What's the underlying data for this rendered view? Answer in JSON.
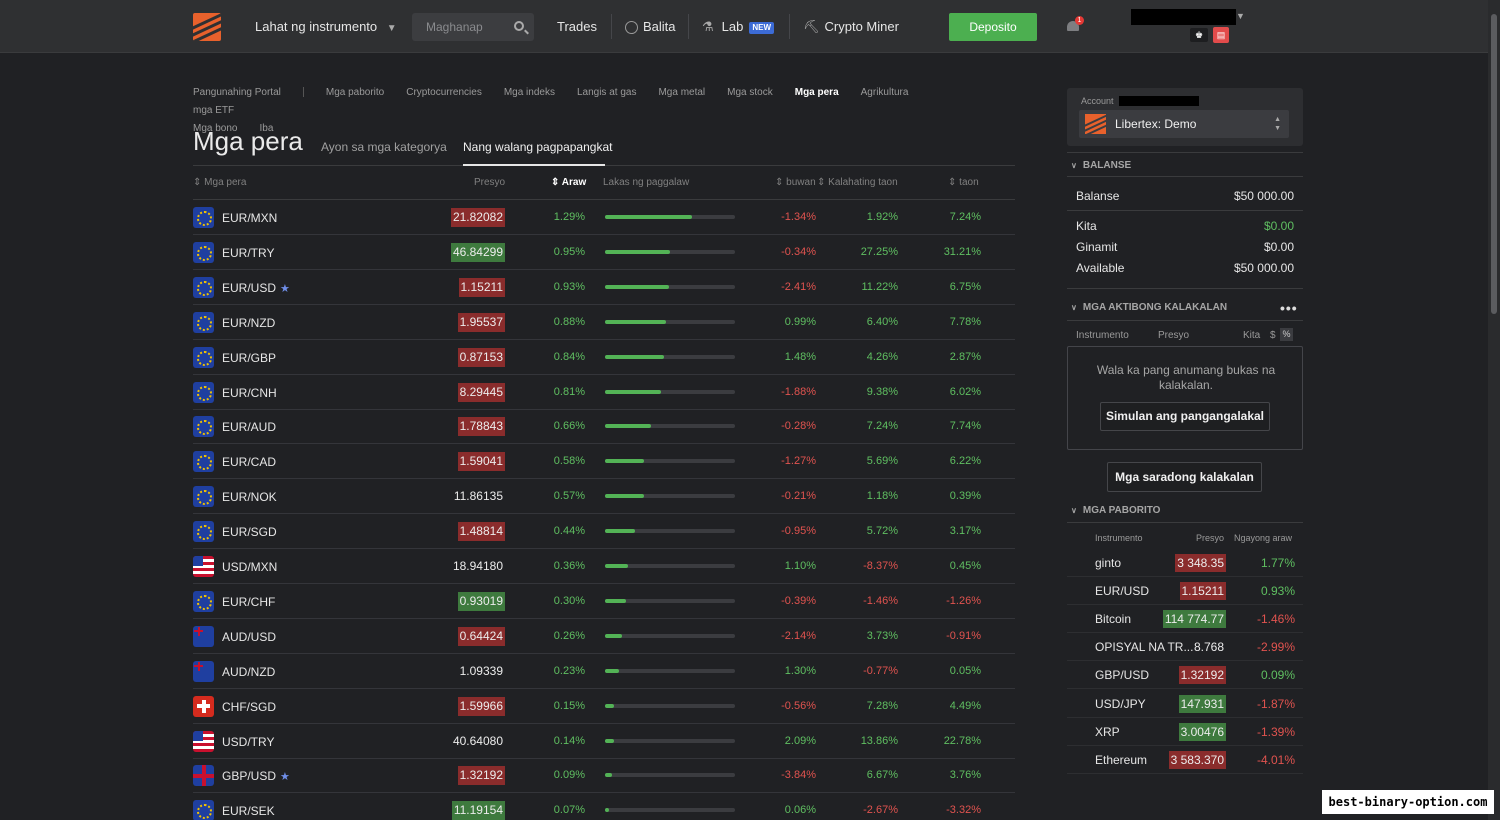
{
  "header": {
    "instruments_menu": "Lahat ng instrumento",
    "search_placeholder": "Maghanap",
    "trades": "Trades",
    "news": "Balita",
    "lab": "Lab",
    "lab_badge": "NEW",
    "crypto_miner": "Crypto Miner",
    "deposit": "Deposito",
    "notifications_count": "1",
    "badge_white": "♚",
    "badge_red": "▤"
  },
  "breadcrumbs": [
    "Pangunahing Portal",
    "Mga paborito",
    "Cryptocurrencies",
    "Mga indeks",
    "Langis at gas",
    "Mga metal",
    "Mga stock",
    "Mga pera",
    "Agrikultura",
    "mga ETF",
    "Mga bono",
    "Iba"
  ],
  "active_breadcrumb": "Mga pera",
  "page": {
    "title": "Mga pera",
    "tab_category": "Ayon sa mga kategorya",
    "tab_unranked": "Nang walang pagpapangkat"
  },
  "table": {
    "columns": {
      "name": "Mga pera",
      "price": "Presyo",
      "day": "Araw",
      "strength": "Lakas ng paggalaw",
      "month": "buwan",
      "half_year": "Kalahating taon",
      "year": "taon"
    },
    "rows": [
      {
        "flag": "eu",
        "pair": "EUR/MXN",
        "fav": false,
        "price": "21.82082",
        "price_dir": "down",
        "day": "1.29%",
        "strength": 0.67,
        "month": "-1.34%",
        "half": "1.92%",
        "year": "7.24%"
      },
      {
        "flag": "eu",
        "pair": "EUR/TRY",
        "fav": false,
        "price": "46.84299",
        "price_dir": "up",
        "day": "0.95%",
        "strength": 0.5,
        "month": "-0.34%",
        "half": "27.25%",
        "year": "31.21%"
      },
      {
        "flag": "eu",
        "pair": "EUR/USD",
        "fav": true,
        "price": "1.15211",
        "price_dir": "down",
        "day": "0.93%",
        "strength": 0.49,
        "month": "-2.41%",
        "half": "11.22%",
        "year": "6.75%"
      },
      {
        "flag": "eu",
        "pair": "EUR/NZD",
        "fav": false,
        "price": "1.95537",
        "price_dir": "down",
        "day": "0.88%",
        "strength": 0.47,
        "month": "0.99%",
        "half": "6.40%",
        "year": "7.78%"
      },
      {
        "flag": "eu",
        "pair": "EUR/GBP",
        "fav": false,
        "price": "0.87153",
        "price_dir": "down",
        "day": "0.84%",
        "strength": 0.45,
        "month": "1.48%",
        "half": "4.26%",
        "year": "2.87%"
      },
      {
        "flag": "eu",
        "pair": "EUR/CNH",
        "fav": false,
        "price": "8.29445",
        "price_dir": "down",
        "day": "0.81%",
        "strength": 0.43,
        "month": "-1.88%",
        "half": "9.38%",
        "year": "6.02%"
      },
      {
        "flag": "eu",
        "pair": "EUR/AUD",
        "fav": false,
        "price": "1.78843",
        "price_dir": "down",
        "day": "0.66%",
        "strength": 0.35,
        "month": "-0.28%",
        "half": "7.24%",
        "year": "7.74%"
      },
      {
        "flag": "eu",
        "pair": "EUR/CAD",
        "fav": false,
        "price": "1.59041",
        "price_dir": "down",
        "day": "0.58%",
        "strength": 0.3,
        "month": "-1.27%",
        "half": "5.69%",
        "year": "6.22%"
      },
      {
        "flag": "eu",
        "pair": "EUR/NOK",
        "fav": false,
        "price": "11.86135",
        "price_dir": "none",
        "day": "0.57%",
        "strength": 0.3,
        "month": "-0.21%",
        "half": "1.18%",
        "year": "0.39%"
      },
      {
        "flag": "eu",
        "pair": "EUR/SGD",
        "fav": false,
        "price": "1.48814",
        "price_dir": "down",
        "day": "0.44%",
        "strength": 0.23,
        "month": "-0.95%",
        "half": "5.72%",
        "year": "3.17%"
      },
      {
        "flag": "us",
        "pair": "USD/MXN",
        "fav": false,
        "price": "18.94180",
        "price_dir": "none",
        "day": "0.36%",
        "strength": 0.18,
        "month": "1.10%",
        "half": "-8.37%",
        "year": "0.45%"
      },
      {
        "flag": "eu",
        "pair": "EUR/CHF",
        "fav": false,
        "price": "0.93019",
        "price_dir": "up",
        "day": "0.30%",
        "strength": 0.16,
        "month": "-0.39%",
        "half": "-1.46%",
        "year": "-1.26%"
      },
      {
        "flag": "au",
        "pair": "AUD/USD",
        "fav": false,
        "price": "0.64424",
        "price_dir": "down",
        "day": "0.26%",
        "strength": 0.13,
        "month": "-2.14%",
        "half": "3.73%",
        "year": "-0.91%"
      },
      {
        "flag": "au",
        "pair": "AUD/NZD",
        "fav": false,
        "price": "1.09339",
        "price_dir": "none",
        "day": "0.23%",
        "strength": 0.11,
        "month": "1.30%",
        "half": "-0.77%",
        "year": "0.05%"
      },
      {
        "flag": "ch",
        "pair": "CHF/SGD",
        "fav": false,
        "price": "1.59966",
        "price_dir": "down",
        "day": "0.15%",
        "strength": 0.07,
        "month": "-0.56%",
        "half": "7.28%",
        "year": "4.49%"
      },
      {
        "flag": "us",
        "pair": "USD/TRY",
        "fav": false,
        "price": "40.64080",
        "price_dir": "none",
        "day": "0.14%",
        "strength": 0.07,
        "month": "2.09%",
        "half": "13.86%",
        "year": "22.78%"
      },
      {
        "flag": "gb",
        "pair": "GBP/USD",
        "fav": true,
        "price": "1.32192",
        "price_dir": "down",
        "day": "0.09%",
        "strength": 0.05,
        "month": "-3.84%",
        "half": "6.67%",
        "year": "3.76%"
      },
      {
        "flag": "eu",
        "pair": "EUR/SEK",
        "fav": false,
        "price": "11.19154",
        "price_dir": "up",
        "day": "0.07%",
        "strength": 0.03,
        "month": "0.06%",
        "half": "-2.67%",
        "year": "-3.32%"
      }
    ]
  },
  "account": {
    "label": "Account",
    "name": "Libertex: Demo"
  },
  "balance": {
    "heading": "BALANSE",
    "balance_label": "Balanse",
    "balance_value": "$50 000.00",
    "profit_label": "Kita",
    "profit_value": "$0.00",
    "used_label": "Ginamit",
    "used_value": "$0.00",
    "available_label": "Available",
    "available_value": "$50 000.00"
  },
  "active_trades": {
    "heading": "MGA AKTIBONG KALAKALAN",
    "more": "•••",
    "col_instrument": "Instrumento",
    "col_price": "Presyo",
    "col_profit": "Kita",
    "currency_toggle": "$",
    "percent_toggle": "%",
    "empty_text": "Wala ka pang anumang bukas na kalakalan.",
    "start_button": "Simulan ang pangangalakal",
    "closed_button": "Mga saradong kalakalan"
  },
  "favorites": {
    "heading": "MGA PABORITO",
    "col_instrument": "Instrumento",
    "col_price": "Presyo",
    "col_change": "Ngayong araw",
    "items": [
      {
        "name": "ginto",
        "price": "3 348.35",
        "dir": "down",
        "change": "1.77%",
        "change_dir": "pos"
      },
      {
        "name": "EUR/USD",
        "price": "1.15211",
        "dir": "down",
        "change": "0.93%",
        "change_dir": "pos"
      },
      {
        "name": "Bitcoin",
        "price": "114 774.77",
        "dir": "up",
        "change": "-1.46%",
        "change_dir": "neg"
      },
      {
        "name": "OPISYAL NA TR...",
        "price": "8.768",
        "dir": "none",
        "change": "-2.99%",
        "change_dir": "neg"
      },
      {
        "name": "GBP/USD",
        "price": "1.32192",
        "dir": "down",
        "change": "0.09%",
        "change_dir": "pos"
      },
      {
        "name": "USD/JPY",
        "price": "147.931",
        "dir": "up",
        "change": "-1.87%",
        "change_dir": "neg"
      },
      {
        "name": "XRP",
        "price": "3.00476",
        "dir": "up",
        "change": "-1.39%",
        "change_dir": "neg"
      },
      {
        "name": "Ethereum",
        "price": "3 583.370",
        "dir": "down",
        "change": "-4.01%",
        "change_dir": "neg"
      }
    ]
  },
  "watermark": "best-binary-option.com",
  "colors": {
    "positive": "#5fbf61",
    "negative": "#e0534f",
    "price_up_bg": "#3e7a3e",
    "price_down_bg": "#8a2c2c",
    "deposit": "#4caf50",
    "brand": "#e8612c"
  }
}
